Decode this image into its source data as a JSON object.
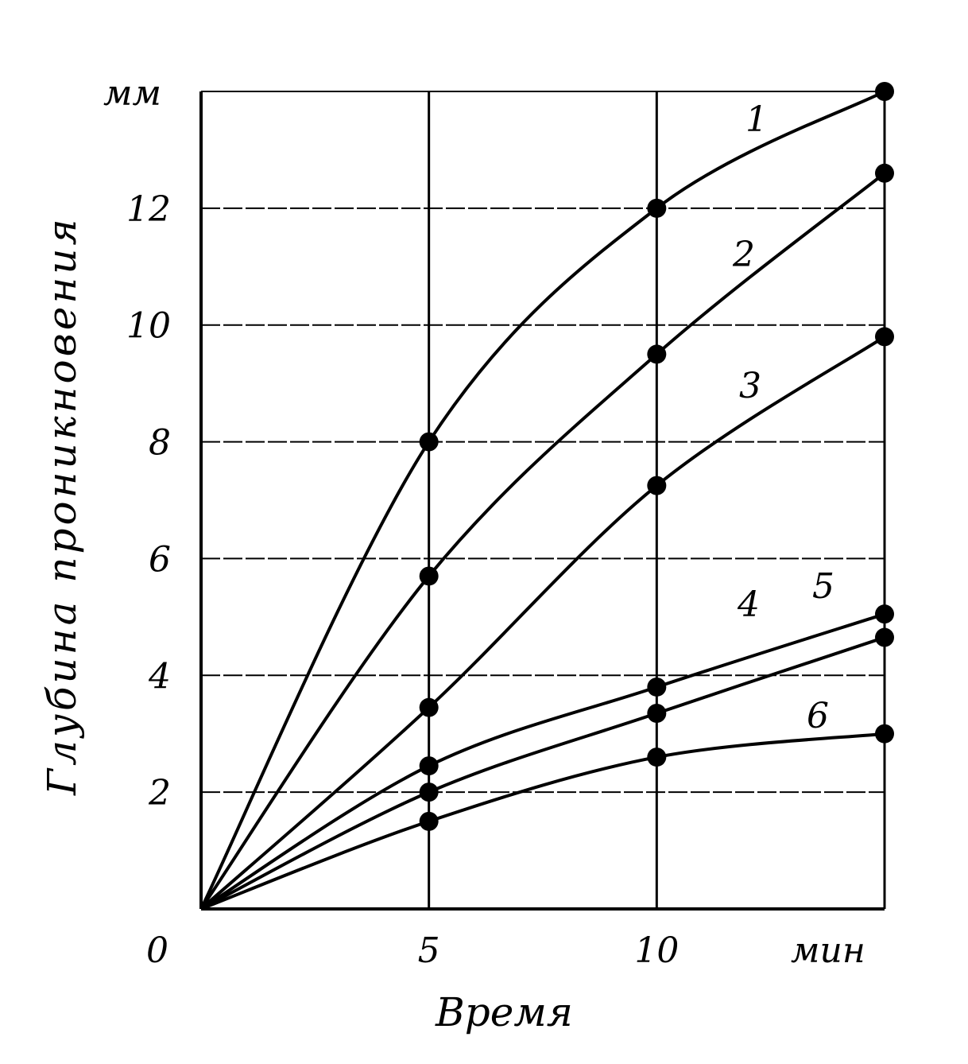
{
  "chart_data": {
    "type": "line",
    "title": "",
    "xlabel": "Время",
    "ylabel": "Глубина проникновения",
    "x_unit": "мин",
    "y_unit": "мм",
    "xlim": [
      0,
      15
    ],
    "ylim": [
      0,
      14
    ],
    "x_ticks": [
      0,
      5,
      10
    ],
    "x_tick_labels": [
      "0",
      "5",
      "10"
    ],
    "y_ticks": [
      2,
      4,
      6,
      8,
      10,
      12
    ],
    "y_tick_labels": [
      "2",
      "4",
      "6",
      "8",
      "10",
      "12"
    ],
    "grid": true,
    "x": [
      0,
      5,
      10,
      15
    ],
    "series": [
      {
        "name": "1",
        "values": [
          0,
          8.0,
          12.0,
          14.0
        ]
      },
      {
        "name": "2",
        "values": [
          0,
          5.7,
          9.5,
          12.6
        ]
      },
      {
        "name": "3",
        "values": [
          0,
          3.45,
          7.25,
          9.8
        ]
      },
      {
        "name": "4",
        "values": [
          0,
          2.45,
          3.8,
          5.05
        ]
      },
      {
        "name": "5",
        "values": [
          0,
          2.0,
          3.35,
          4.65
        ]
      },
      {
        "name": "6",
        "values": [
          0,
          1.5,
          2.6,
          3.0
        ]
      }
    ]
  }
}
